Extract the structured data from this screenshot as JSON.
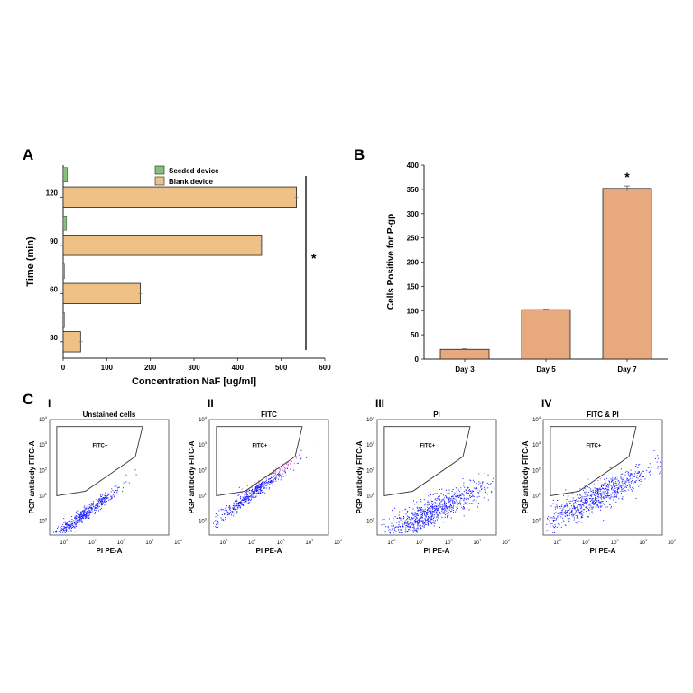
{
  "panel_letters": {
    "a": "A",
    "b": "B",
    "c": "C"
  },
  "chart_data": [
    {
      "id": "A",
      "type": "bar",
      "orientation": "horizontal",
      "categories": [
        "30",
        "60",
        "90",
        "120"
      ],
      "series": [
        {
          "name": "Seeded device",
          "color": "#86c07a",
          "values": [
            1,
            3,
            8,
            10
          ]
        },
        {
          "name": "Blank device",
          "color": "#eec186",
          "values": [
            40,
            177,
            455,
            535
          ],
          "errors": [
            5,
            4,
            5,
            4
          ]
        }
      ],
      "xlabel": "Concentration NaF [ug/ml]",
      "ylabel": "Time (min)",
      "xlim": [
        0,
        600
      ],
      "xticks": [
        "0",
        "100",
        "200",
        "300",
        "400",
        "500",
        "600"
      ],
      "annotation": "*",
      "legend": "top-center",
      "grid": false
    },
    {
      "id": "B",
      "type": "bar",
      "categories": [
        "Day 3",
        "Day 5",
        "Day 7"
      ],
      "values": [
        20,
        102,
        352
      ],
      "errors": [
        1,
        1,
        5
      ],
      "color": "#e8a97e",
      "ylabel": "Cells Positive for P-gp",
      "ylim": [
        0,
        400
      ],
      "yticks": [
        "0",
        "50",
        "100",
        "150",
        "200",
        "250",
        "300",
        "350",
        "400"
      ],
      "annotation": "*",
      "grid": false
    }
  ],
  "flow_panels": [
    {
      "id": "I",
      "title": "Unstained cells",
      "gate_label": "FITC+",
      "ylabel": "PGP antibody FITC-A",
      "xlabel": "PI PE-A",
      "tick_exps": [
        "0",
        "1",
        "2",
        "3"
      ],
      "max_exp": "4"
    },
    {
      "id": "II",
      "title": "FITC",
      "gate_label": "FITC+",
      "ylabel": "PGP antibody FITC-A",
      "xlabel": "PI PE-A",
      "tick_exps": [
        "0",
        "1",
        "2",
        "3"
      ],
      "max_exp": "4"
    },
    {
      "id": "III",
      "title": "PI",
      "gate_label": "FITC+",
      "ylabel": "PGP antibody FITC-A",
      "xlabel": "PI PE-A",
      "tick_exps": [
        "0",
        "1",
        "2",
        "3"
      ],
      "max_exp": "4"
    },
    {
      "id": "IV",
      "title": "FITC & PI",
      "gate_label": "FITC+",
      "ylabel": "PGP antibody FITC-A",
      "xlabel": "PI PE-A",
      "tick_exps": [
        "0",
        "1",
        "2",
        "3"
      ],
      "max_exp": "4"
    }
  ],
  "colors": {
    "bar_edge": "#222222",
    "dots": "#1a1aff",
    "gated_dots": "#cc33cc"
  }
}
